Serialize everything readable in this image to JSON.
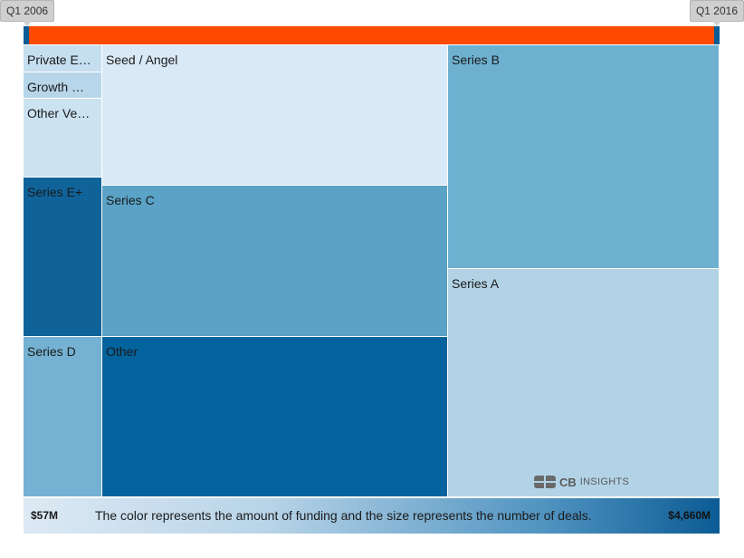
{
  "timeline": {
    "start_label": "Q1 2006",
    "end_label": "Q1 2016",
    "fill_color": "#ff4a00",
    "track_color": "#0a5c95"
  },
  "chart_data": {
    "type": "treemap",
    "size_metric": "number of deals",
    "color_metric": "amount of funding",
    "tiles": [
      {
        "label": "Private E…",
        "color": "#c5def0"
      },
      {
        "label": "Growth …",
        "color": "#b7d6ea"
      },
      {
        "label": "Other Ve…",
        "color": "#cbe2f1"
      },
      {
        "label": "Seed / Angel",
        "color": "#d9e9f6"
      },
      {
        "label": "Series B",
        "color": "#6eb0d0"
      },
      {
        "label": "Series E+",
        "color": "#0f6399"
      },
      {
        "label": "Series C",
        "color": "#5aa2c6"
      },
      {
        "label": "Series A",
        "color": "#b2d3e6"
      },
      {
        "label": "Series D",
        "color": "#74b1d2"
      },
      {
        "label": "Other",
        "color": "#03639c"
      }
    ]
  },
  "legend": {
    "min_label": "$57M",
    "max_label": "$4,660M",
    "caption": "The color represents the amount of funding and the size represents the number of deals.",
    "min_color": "#dde9f4",
    "max_color": "#0c5b94"
  },
  "watermark": {
    "brand": "CB",
    "brand_sub": "INSIGHTS"
  }
}
